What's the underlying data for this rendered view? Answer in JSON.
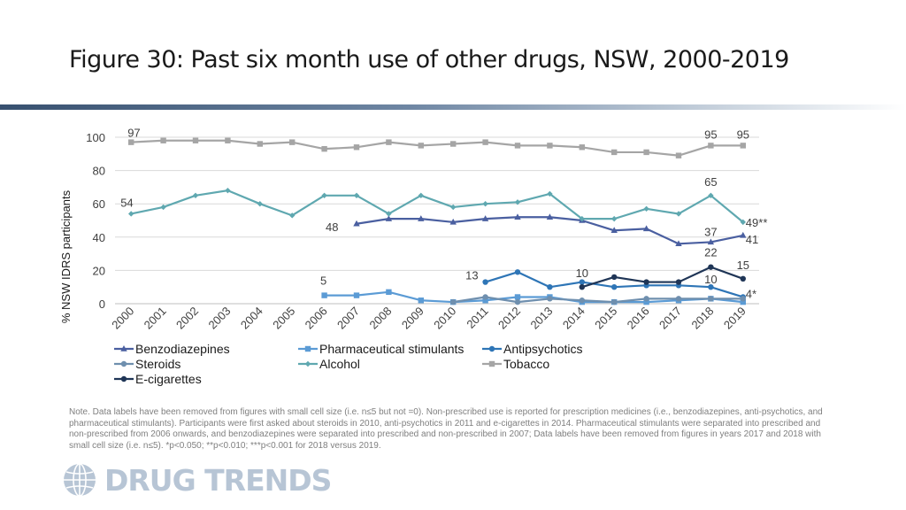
{
  "page": {
    "title": "Figure 30: Past six month use of other drugs, NSW, 2000-2019",
    "note": "Note. Data labels have been removed from figures with small cell size (i.e. n≤5 but not =0). Non-prescribed use is reported for prescription medicines (i.e., benzodiazepines, anti-psychotics, and pharmaceutical stimulants). Participants were first asked about steroids in 2010, anti-psychotics in 2011 and e-cigarettes in 2014. Pharmaceutical stimulants were separated into prescribed and non-prescribed from 2006 onwards, and benzodiazepines were separated into prescribed and non-prescribed in 2007; Data labels have been removed from figures in years 2017 and 2018 with small cell size (i.e. n≤5). *p<0.050; **p<0.010; ***p<0.001 for 2018 versus 2019.",
    "logo_text": "DRUG TRENDS",
    "logo_icon": "globe-icon"
  },
  "chart_data": {
    "type": "line",
    "ylabel": "% NSW IDRS participants",
    "xlabel": "",
    "ylim": [
      0,
      100
    ],
    "yticks": [
      0,
      20,
      40,
      60,
      80,
      100
    ],
    "grid": true,
    "legend_position": "bottom",
    "categories": [
      "2000",
      "2001",
      "2002",
      "2003",
      "2004",
      "2005",
      "2006",
      "2007",
      "2008",
      "2009",
      "2010",
      "2011",
      "2012",
      "2013",
      "2014",
      "2015",
      "2016",
      "2017",
      "2018",
      "2019"
    ],
    "series": [
      {
        "name": "Benzodiazepines",
        "color": "#4a5fa0",
        "marker": "triangle",
        "values": [
          null,
          null,
          null,
          null,
          null,
          null,
          null,
          48,
          51,
          51,
          49,
          51,
          52,
          52,
          50,
          44,
          45,
          36,
          37,
          41
        ]
      },
      {
        "name": "Pharmaceutical stimulants",
        "color": "#5b9bd5",
        "marker": "square",
        "values": [
          null,
          null,
          null,
          null,
          null,
          null,
          5,
          5,
          7,
          2,
          1,
          2,
          4,
          4,
          1,
          1,
          1,
          2,
          3,
          1
        ]
      },
      {
        "name": "Antipsychotics",
        "color": "#2e75b6",
        "marker": "circle",
        "values": [
          null,
          null,
          null,
          null,
          null,
          null,
          null,
          null,
          null,
          null,
          null,
          13,
          19,
          10,
          13,
          10,
          11,
          11,
          10,
          4
        ]
      },
      {
        "name": "Steroids",
        "color": "#6f8fae",
        "marker": "circle",
        "values": [
          null,
          null,
          null,
          null,
          null,
          null,
          null,
          null,
          null,
          null,
          1,
          4,
          1,
          3,
          2,
          1,
          3,
          3,
          3,
          3
        ]
      },
      {
        "name": "Alcohol",
        "color": "#5fa8b0",
        "marker": "diamond",
        "values": [
          54,
          58,
          65,
          68,
          60,
          53,
          65,
          65,
          54,
          65,
          58,
          60,
          61,
          66,
          51,
          51,
          57,
          54,
          65,
          49
        ]
      },
      {
        "name": "Tobacco",
        "color": "#a5a5a5",
        "marker": "square",
        "values": [
          97,
          98,
          98,
          98,
          96,
          97,
          93,
          94,
          97,
          95,
          96,
          97,
          95,
          95,
          94,
          91,
          91,
          89,
          95,
          95
        ]
      },
      {
        "name": "E-cigarettes",
        "color": "#1f3556",
        "marker": "circle",
        "values": [
          null,
          null,
          null,
          null,
          null,
          null,
          null,
          null,
          null,
          null,
          null,
          null,
          null,
          null,
          10,
          16,
          13,
          13,
          22,
          15
        ]
      }
    ],
    "annotations": [
      {
        "text": "97",
        "series": "Tobacco",
        "x": "2000"
      },
      {
        "text": "95",
        "series": "Tobacco",
        "x": "2018"
      },
      {
        "text": "95",
        "series": "Tobacco",
        "x": "2019"
      },
      {
        "text": "54",
        "series": "Alcohol",
        "x": "2000"
      },
      {
        "text": "65",
        "series": "Alcohol",
        "x": "2018"
      },
      {
        "text": "49**",
        "series": "Alcohol",
        "x": "2019"
      },
      {
        "text": "48",
        "series": "Benzodiazepines",
        "x": "2007"
      },
      {
        "text": "37",
        "series": "Benzodiazepines",
        "x": "2018"
      },
      {
        "text": "41",
        "series": "Benzodiazepines",
        "x": "2019"
      },
      {
        "text": "5",
        "series": "Pharmaceutical stimulants",
        "x": "2006"
      },
      {
        "text": "13",
        "series": "Antipsychotics",
        "x": "2011"
      },
      {
        "text": "10",
        "series": "E-cigarettes",
        "x": "2014"
      },
      {
        "text": "22",
        "series": "E-cigarettes",
        "x": "2018"
      },
      {
        "text": "15",
        "series": "E-cigarettes",
        "x": "2019"
      },
      {
        "text": "10",
        "series": "Antipsychotics",
        "x": "2018"
      },
      {
        "text": "4*",
        "series": "Antipsychotics",
        "x": "2019"
      }
    ]
  }
}
